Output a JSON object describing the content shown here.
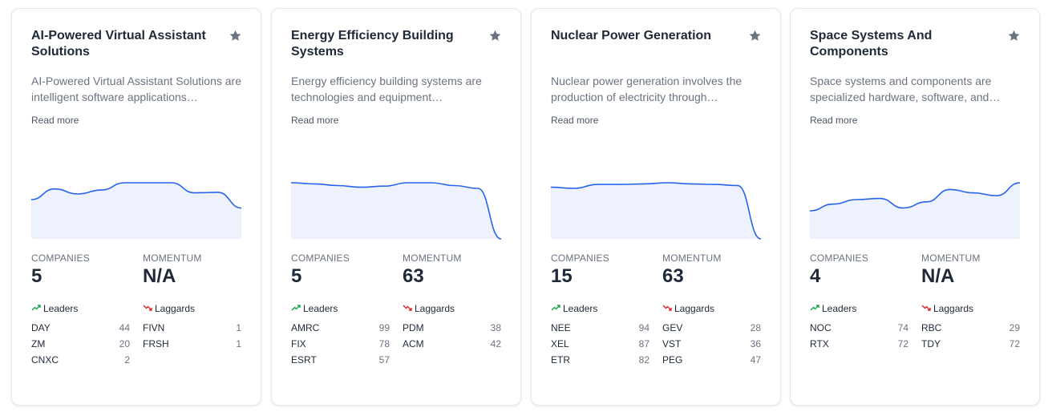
{
  "cards": [
    {
      "title": "AI-Powered Virtual Assistant Solutions",
      "description": "AI-Powered Virtual Assistant Solutions are intelligent software applications…",
      "read_more": "Read more",
      "trend": [
        0.7,
        0.89,
        0.8,
        0.87,
        1.0,
        1.0,
        1.0,
        0.82,
        0.83,
        0.55
      ],
      "companies_label": "COMPANIES",
      "companies_value": "5",
      "momentum_label": "MOMENTUM",
      "momentum_value": "N/A",
      "leaders_label": "Leaders",
      "laggards_label": "Laggards",
      "leaders": [
        {
          "ticker": "DAY",
          "score": "44"
        },
        {
          "ticker": "ZM",
          "score": "20"
        },
        {
          "ticker": "CNXC",
          "score": "2"
        }
      ],
      "laggards": [
        {
          "ticker": "FIVN",
          "score": "1"
        },
        {
          "ticker": "FRSH",
          "score": "1"
        }
      ]
    },
    {
      "title": "Energy Efficiency Building Systems",
      "description": "Energy efficiency building systems are technologies and equipment…",
      "read_more": "Read more",
      "trend": [
        1.0,
        0.98,
        0.95,
        0.92,
        0.94,
        1.0,
        1.0,
        0.95,
        0.9,
        0.0
      ],
      "companies_label": "COMPANIES",
      "companies_value": "5",
      "momentum_label": "MOMENTUM",
      "momentum_value": "63",
      "leaders_label": "Leaders",
      "laggards_label": "Laggards",
      "leaders": [
        {
          "ticker": "AMRC",
          "score": "99"
        },
        {
          "ticker": "FIX",
          "score": "78"
        },
        {
          "ticker": "ESRT",
          "score": "57"
        }
      ],
      "laggards": [
        {
          "ticker": "PDM",
          "score": "38"
        },
        {
          "ticker": "ACM",
          "score": "42"
        }
      ]
    },
    {
      "title": "Nuclear Power Generation",
      "description": "Nuclear power generation involves the production of electricity through…",
      "read_more": "Read more",
      "trend": [
        0.92,
        0.9,
        0.97,
        0.97,
        0.98,
        1.0,
        0.98,
        0.97,
        0.95,
        0.0
      ],
      "companies_label": "COMPANIES",
      "companies_value": "15",
      "momentum_label": "MOMENTUM",
      "momentum_value": "63",
      "leaders_label": "Leaders",
      "laggards_label": "Laggards",
      "leaders": [
        {
          "ticker": "NEE",
          "score": "94"
        },
        {
          "ticker": "XEL",
          "score": "87"
        },
        {
          "ticker": "ETR",
          "score": "82"
        }
      ],
      "laggards": [
        {
          "ticker": "GEV",
          "score": "28"
        },
        {
          "ticker": "VST",
          "score": "36"
        },
        {
          "ticker": "PEG",
          "score": "47"
        }
      ]
    },
    {
      "title": "Space Systems And Components",
      "description": "Space systems and components are specialized hardware, software, and…",
      "read_more": "Read more",
      "trend": [
        0.5,
        0.62,
        0.7,
        0.72,
        0.55,
        0.66,
        0.88,
        0.82,
        0.77,
        1.0
      ],
      "companies_label": "COMPANIES",
      "companies_value": "4",
      "momentum_label": "MOMENTUM",
      "momentum_value": "N/A",
      "leaders_label": "Leaders",
      "laggards_label": "Laggards",
      "leaders": [
        {
          "ticker": "NOC",
          "score": "74"
        },
        {
          "ticker": "RTX",
          "score": "72"
        }
      ],
      "laggards": [
        {
          "ticker": "RBC",
          "score": "29"
        },
        {
          "ticker": "TDY",
          "score": "72"
        }
      ]
    }
  ],
  "colors": {
    "line": "#2563eb",
    "area": "#eef2fd",
    "star": "#6b7280",
    "up": "#16a34a",
    "down": "#dc2626"
  },
  "icons": {
    "favorite": "star-icon",
    "leaders": "trend-up-icon",
    "laggards": "trend-down-icon"
  }
}
